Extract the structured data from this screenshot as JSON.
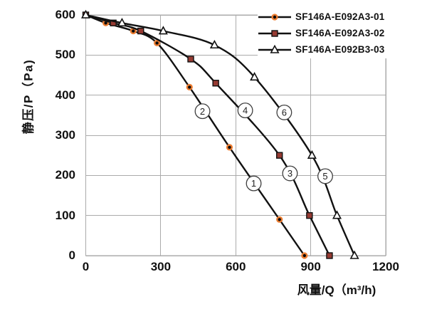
{
  "chart_data": {
    "type": "line",
    "title": "",
    "xlabel": "风量/Q（m³/h)",
    "ylabel": "静压/P（Pa)",
    "xlim": [
      0,
      1200
    ],
    "ylim": [
      0,
      600
    ],
    "x_ticks": [
      0,
      300,
      600,
      900,
      1200
    ],
    "y_ticks": [
      0,
      100,
      200,
      300,
      400,
      500,
      600
    ],
    "grid": true,
    "legend_position": "top-right-inside",
    "series": [
      {
        "name": "SF146A-E092A3-01",
        "marker": "circle",
        "points": [
          [
            0,
            600
          ],
          [
            80,
            580
          ],
          [
            190,
            560
          ],
          [
            285,
            530
          ],
          [
            415,
            420
          ],
          [
            575,
            270
          ],
          [
            775,
            90
          ],
          [
            875,
            0
          ]
        ]
      },
      {
        "name": "SF146A-E092A3-02",
        "marker": "square",
        "points": [
          [
            0,
            600
          ],
          [
            110,
            580
          ],
          [
            220,
            560
          ],
          [
            420,
            490
          ],
          [
            520,
            430
          ],
          [
            775,
            250
          ],
          [
            895,
            100
          ],
          [
            975,
            0
          ]
        ]
      },
      {
        "name": "SF146A-E092B3-03",
        "marker": "triangle",
        "points": [
          [
            0,
            600
          ],
          [
            145,
            580
          ],
          [
            310,
            560
          ],
          [
            515,
            525
          ],
          [
            675,
            445
          ],
          [
            905,
            250
          ],
          [
            1005,
            100
          ],
          [
            1075,
            0
          ]
        ]
      }
    ],
    "curve_labels": [
      {
        "text": "1",
        "q": 672,
        "p": 180
      },
      {
        "text": "2",
        "q": 467,
        "p": 360
      },
      {
        "text": "3",
        "q": 817,
        "p": 205
      },
      {
        "text": "4",
        "q": 638,
        "p": 362
      },
      {
        "text": "5",
        "q": 958,
        "p": 198
      },
      {
        "text": "6",
        "q": 794,
        "p": 357
      }
    ]
  },
  "colors": {
    "line": "#111111",
    "grid": "#ABABAB",
    "circle_marker_fill": "#0a0a0a",
    "circle_marker_ring": "#ED7D31",
    "square_marker_fill": "#963A32",
    "marker_stroke": "#111111",
    "triangle_marker_fill": "#ffffff",
    "annotation_stroke": "#3f3f3f",
    "text": "#111111"
  }
}
